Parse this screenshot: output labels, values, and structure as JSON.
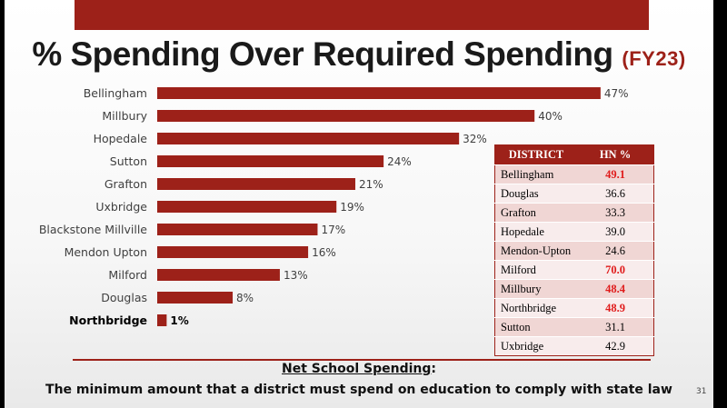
{
  "slide": {
    "title": "% Spending Over Required Spending",
    "title_suffix": "(FY23)",
    "note_title": "Net School Spending",
    "note_colon": ":",
    "note_text": "The minimum amount that a district must spend on education to comply with state law",
    "page_number": "31"
  },
  "colors": {
    "accent": "#9d2119",
    "highlight_text": "#e01b1b"
  },
  "chart_data": {
    "type": "bar",
    "orientation": "horizontal",
    "title": "% Spending Over Required Spending (FY23)",
    "categories": [
      "Bellingham",
      "Millbury",
      "Hopedale",
      "Sutton",
      "Grafton",
      "Uxbridge",
      "Blackstone Millville",
      "Mendon Upton",
      "Milford",
      "Douglas",
      "Northbridge"
    ],
    "values": [
      47,
      40,
      32,
      24,
      21,
      19,
      17,
      16,
      13,
      8,
      1
    ],
    "value_labels": [
      "47%",
      "40%",
      "32%",
      "24%",
      "21%",
      "19%",
      "17%",
      "16%",
      "13%",
      "8%",
      "1%"
    ],
    "highlighted_category": "Northbridge",
    "xlim": [
      0,
      50
    ],
    "grid": false,
    "bar_color": "#9d2119"
  },
  "table": {
    "headers": [
      "DISTRICT",
      "HN %"
    ],
    "rows": [
      {
        "district": "Bellingham",
        "value": "49.1",
        "highlight": true
      },
      {
        "district": "Douglas",
        "value": "36.6",
        "highlight": false
      },
      {
        "district": "Grafton",
        "value": "33.3",
        "highlight": false
      },
      {
        "district": "Hopedale",
        "value": "39.0",
        "highlight": false
      },
      {
        "district": "Mendon-Upton",
        "value": "24.6",
        "highlight": false
      },
      {
        "district": "Milford",
        "value": "70.0",
        "highlight": true
      },
      {
        "district": "Millbury",
        "value": "48.4",
        "highlight": true
      },
      {
        "district": "Northbridge",
        "value": "48.9",
        "highlight": true
      },
      {
        "district": "Sutton",
        "value": "31.1",
        "highlight": false
      },
      {
        "district": "Uxbridge",
        "value": "42.9",
        "highlight": false
      }
    ]
  }
}
